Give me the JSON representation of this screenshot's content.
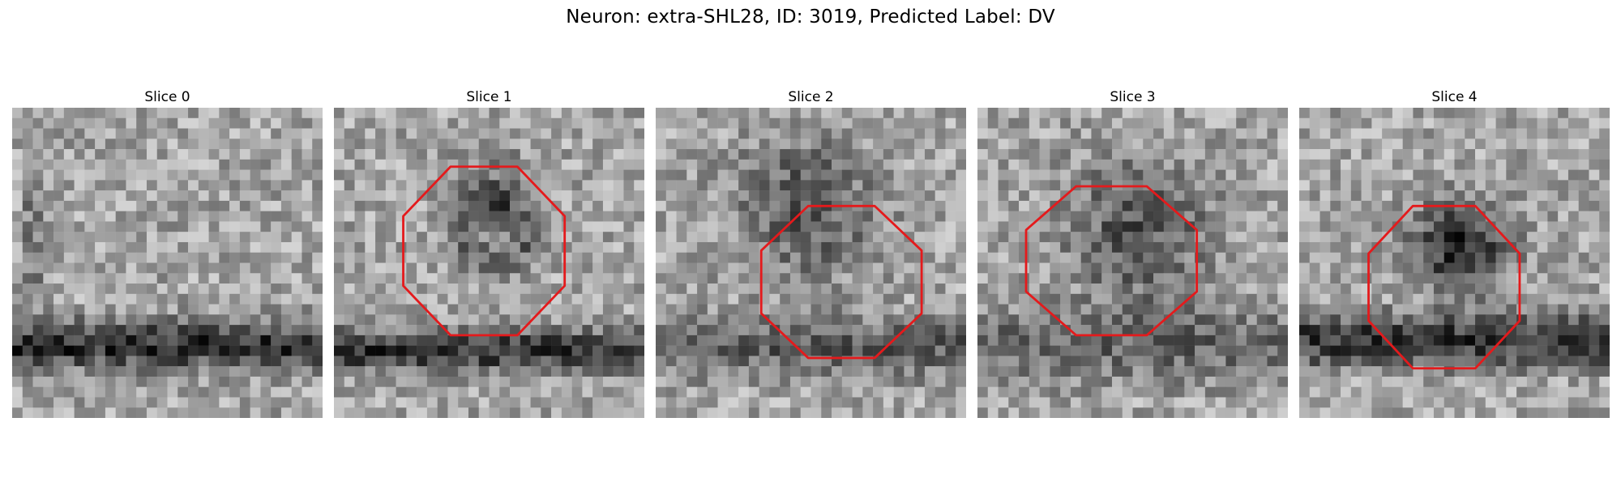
{
  "figure": {
    "title": "Neuron: extra-SHL28, ID: 3019, Predicted Label: DV",
    "roi_color": "#e41a1c"
  },
  "panels": [
    {
      "title": "Slice 0",
      "has_roi": false
    },
    {
      "title": "Slice 1",
      "has_roi": true
    },
    {
      "title": "Slice 2",
      "has_roi": true
    },
    {
      "title": "Slice 3",
      "has_roi": true
    },
    {
      "title": "Slice 4",
      "has_roi": true
    }
  ]
}
